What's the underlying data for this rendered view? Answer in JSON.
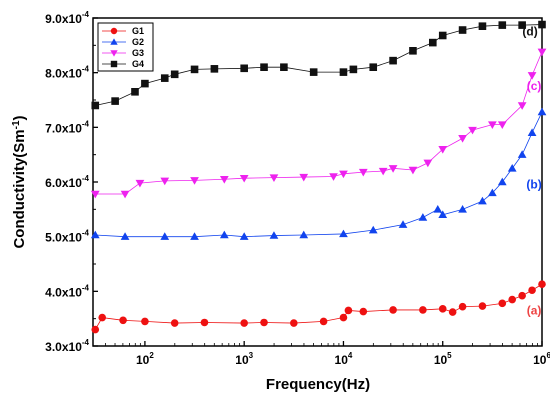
{
  "chart_data": {
    "type": "scatter",
    "xlabel": "Frequency(Hz)",
    "ylabel": "Conductivity(Sm-1)",
    "ylabel_main": "Conductivity(Sm",
    "ylabel_sup": "-1",
    "ylabel_close": ")",
    "x_scale": "log",
    "xlim": [
      30,
      1000000
    ],
    "ylim": [
      0.0003,
      0.0009
    ],
    "x_ticks": [
      {
        "value": 100,
        "base": "10",
        "exp": "2"
      },
      {
        "value": 1000,
        "base": "10",
        "exp": "3"
      },
      {
        "value": 10000,
        "base": "10",
        "exp": "4"
      },
      {
        "value": 100000,
        "base": "10",
        "exp": "5"
      },
      {
        "value": 1000000,
        "base": "10",
        "exp": "6"
      }
    ],
    "y_ticks": [
      {
        "value": 0.0003,
        "label": "3.0x10",
        "exp": "-4"
      },
      {
        "value": 0.0004,
        "label": "4.0x10",
        "exp": "-4"
      },
      {
        "value": 0.0005,
        "label": "5.0x10",
        "exp": "-4"
      },
      {
        "value": 0.0006,
        "label": "6.0x10",
        "exp": "-4"
      },
      {
        "value": 0.0007,
        "label": "7.0x10",
        "exp": "-4"
      },
      {
        "value": 0.0008,
        "label": "8.0x10",
        "exp": "-4"
      },
      {
        "value": 0.0009,
        "label": "9.0x10",
        "exp": "-4"
      }
    ],
    "grid": false,
    "legend_position": "top-left",
    "series": [
      {
        "name": "G1",
        "color": "#ee1111",
        "marker": "circle",
        "x_log": [
          1.5,
          1.57,
          1.78,
          2.0,
          2.3,
          2.6,
          3.0,
          3.2,
          3.5,
          3.8,
          4.0,
          4.05,
          4.2,
          4.5,
          4.8,
          5.0,
          5.1,
          5.2,
          5.4,
          5.6,
          5.7,
          5.8,
          5.9,
          6.0
        ],
        "y": [
          0.00033,
          0.000352,
          0.000347,
          0.000345,
          0.000342,
          0.000343,
          0.000342,
          0.000343,
          0.000342,
          0.000345,
          0.000352,
          0.000365,
          0.000363,
          0.000366,
          0.000366,
          0.000368,
          0.000362,
          0.000372,
          0.000373,
          0.000378,
          0.000385,
          0.000392,
          0.000402,
          0.000413
        ]
      },
      {
        "name": "G2",
        "color": "#1144ee",
        "marker": "triangle-up",
        "x_log": [
          1.5,
          1.8,
          2.2,
          2.5,
          2.8,
          3.0,
          3.3,
          3.6,
          4.0,
          4.3,
          4.6,
          4.8,
          4.95,
          5.0,
          5.2,
          5.4,
          5.5,
          5.6,
          5.7,
          5.8,
          5.9,
          6.0
        ],
        "y": [
          0.000503,
          0.0005,
          0.0005,
          0.0005,
          0.000503,
          0.0005,
          0.000502,
          0.000503,
          0.000505,
          0.000512,
          0.000522,
          0.000535,
          0.00055,
          0.00054,
          0.00055,
          0.000565,
          0.00058,
          0.0006,
          0.000625,
          0.00065,
          0.00069,
          0.000728
        ]
      },
      {
        "name": "G3",
        "color": "#ee22ee",
        "marker": "triangle-down",
        "x_log": [
          1.5,
          1.8,
          1.95,
          2.2,
          2.5,
          2.8,
          3.0,
          3.3,
          3.6,
          3.9,
          4.0,
          4.2,
          4.4,
          4.5,
          4.7,
          4.85,
          5.0,
          5.2,
          5.3,
          5.5,
          5.6,
          5.8,
          5.9,
          6.0
        ],
        "y": [
          0.000578,
          0.000578,
          0.000598,
          0.000602,
          0.000603,
          0.000605,
          0.000607,
          0.000608,
          0.000609,
          0.00061,
          0.000615,
          0.000618,
          0.00062,
          0.000625,
          0.000622,
          0.000635,
          0.00066,
          0.00068,
          0.000695,
          0.000705,
          0.000705,
          0.00074,
          0.000795,
          0.000838
        ]
      },
      {
        "name": "G4",
        "color": "#111111",
        "marker": "square",
        "x_log": [
          1.5,
          1.7,
          1.9,
          2.0,
          2.2,
          2.3,
          2.5,
          2.7,
          3.0,
          3.2,
          3.4,
          3.7,
          4.0,
          4.1,
          4.3,
          4.5,
          4.7,
          4.9,
          5.0,
          5.2,
          5.4,
          5.6,
          5.8,
          6.0
        ],
        "y": [
          0.00074,
          0.000748,
          0.000765,
          0.00078,
          0.00079,
          0.000797,
          0.000806,
          0.000807,
          0.000808,
          0.00081,
          0.00081,
          0.000801,
          0.000801,
          0.000806,
          0.00081,
          0.000822,
          0.00084,
          0.000855,
          0.000868,
          0.000878,
          0.000885,
          0.000887,
          0.000887,
          0.000888
        ]
      }
    ],
    "annotations": [
      {
        "text": "(a)",
        "color": "#ee4444",
        "x_log": 5.92,
        "y": 0.000358
      },
      {
        "text": "(b)",
        "color": "#1144ee",
        "x_log": 5.92,
        "y": 0.000588
      },
      {
        "text": "(c)",
        "color": "#ee22ee",
        "x_log": 5.92,
        "y": 0.000768
      },
      {
        "text": "(d)",
        "color": "#111111",
        "x_log": 5.88,
        "y": 0.000868
      }
    ]
  }
}
